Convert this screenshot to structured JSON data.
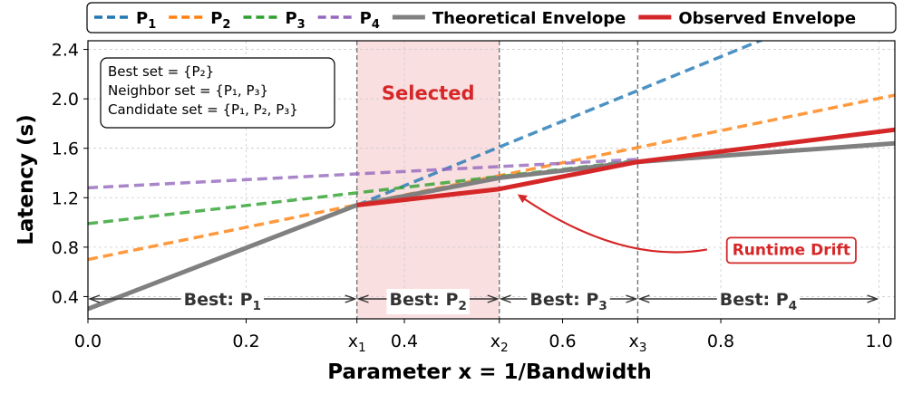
{
  "chart_data": {
    "type": "line",
    "xlabel": "Parameter x = 1/Bandwidth",
    "ylabel": "Latency (s)",
    "xlim": [
      0.0,
      1.02
    ],
    "ylim": [
      0.22,
      2.47
    ],
    "grid": true,
    "legend_placement": "top",
    "x_ticks": [
      {
        "value": 0.0,
        "label": "0.0"
      },
      {
        "value": 0.2,
        "label": "0.2"
      },
      {
        "value": 0.34,
        "label": "x",
        "sub": "1"
      },
      {
        "value": 0.4,
        "label": "0.4"
      },
      {
        "value": 0.52,
        "label": "x",
        "sub": "2"
      },
      {
        "value": 0.6,
        "label": "0.6"
      },
      {
        "value": 0.695,
        "label": "x",
        "sub": "3"
      },
      {
        "value": 0.8,
        "label": "0.8"
      },
      {
        "value": 1.0,
        "label": "1.0"
      }
    ],
    "y_ticks": [
      {
        "value": 0.4,
        "label": "0.4"
      },
      {
        "value": 0.8,
        "label": "0.8"
      },
      {
        "value": 1.2,
        "label": "1.2"
      },
      {
        "value": 1.6,
        "label": "1.6"
      },
      {
        "value": 2.0,
        "label": "2.0"
      },
      {
        "value": 2.4,
        "label": "2.4"
      }
    ],
    "series": [
      {
        "name": "P",
        "sub": "1",
        "color": "#1f77b4",
        "style": "dashed",
        "points": [
          [
            0.34,
            1.14
          ],
          [
            0.88,
            2.55
          ]
        ]
      },
      {
        "name": "P",
        "sub": "2",
        "color": "#ff7f0e",
        "style": "dashed",
        "points": [
          [
            0.0,
            0.7
          ],
          [
            1.02,
            2.03
          ]
        ]
      },
      {
        "name": "P",
        "sub": "3",
        "color": "#2ca02c",
        "style": "dashed",
        "points": [
          [
            0.0,
            0.99
          ],
          [
            0.695,
            1.5
          ]
        ]
      },
      {
        "name": "P",
        "sub": "4",
        "color": "#9467bd",
        "style": "dashed",
        "points": [
          [
            0.0,
            1.28
          ],
          [
            0.695,
            1.51
          ]
        ]
      },
      {
        "name": "Theoretical Envelope",
        "color": "#808080",
        "style": "solid",
        "points": [
          [
            0.0,
            0.3
          ],
          [
            0.34,
            1.14
          ],
          [
            0.52,
            1.36
          ],
          [
            0.695,
            1.49
          ],
          [
            1.02,
            1.64
          ]
        ]
      },
      {
        "name": "Observed Envelope",
        "color": "#d62728",
        "style": "solid",
        "points": [
          [
            0.34,
            1.14
          ],
          [
            0.52,
            1.27
          ],
          [
            0.695,
            1.49
          ],
          [
            1.02,
            1.75
          ]
        ]
      }
    ],
    "selected_region": {
      "x": [
        0.34,
        0.52
      ],
      "label": "Selected"
    },
    "breakpoints": [
      0.34,
      0.52,
      0.695
    ],
    "regions": [
      {
        "x": [
          0.0,
          0.34
        ],
        "label": "Best: P",
        "sub": "1"
      },
      {
        "x": [
          0.34,
          0.52
        ],
        "label": "Best: P",
        "sub": "2"
      },
      {
        "x": [
          0.52,
          0.695
        ],
        "label": "Best: P",
        "sub": "3"
      },
      {
        "x": [
          0.695,
          1.0
        ],
        "label": "Best: P",
        "sub": "4"
      }
    ],
    "annotation": {
      "text": "Runtime Drift",
      "arrow_to": [
        0.54,
        1.27
      ],
      "text_at": [
        0.88,
        0.84
      ]
    },
    "info_box": [
      "Best set = {P₂}",
      "Neighbor set = {P₁, P₃}",
      "Candidate set = {P₁, P₂, P₃}"
    ]
  }
}
